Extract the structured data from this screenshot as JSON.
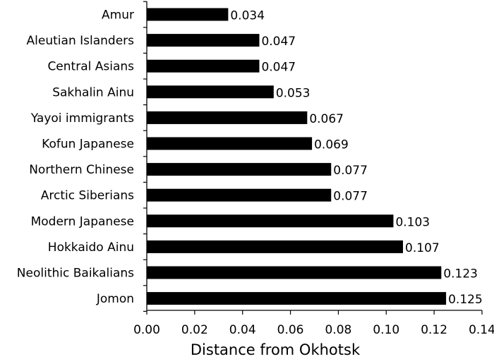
{
  "chart_data": {
    "type": "bar",
    "orientation": "horizontal",
    "categories": [
      "Amur",
      "Aleutian Islanders",
      "Central Asians",
      "Sakhalin Ainu",
      "Yayoi immigrants",
      "Kofun Japanese",
      "Northern Chinese",
      "Arctic Siberians",
      "Modern Japanese",
      "Hokkaido Ainu",
      "Neolithic Baikalians",
      "Jomon"
    ],
    "values": [
      0.034,
      0.047,
      0.047,
      0.053,
      0.067,
      0.069,
      0.077,
      0.077,
      0.103,
      0.107,
      0.123,
      0.125
    ],
    "value_labels": [
      "0.034",
      "0.047",
      "0.047",
      "0.053",
      "0.067",
      "0.069",
      "0.077",
      "0.077",
      "0.103",
      "0.107",
      "0.123",
      "0.125"
    ],
    "title": "",
    "xlabel": "Distance from Okhotsk",
    "ylabel": "",
    "xlim": [
      0,
      0.14
    ],
    "xticks": [
      0.0,
      0.02,
      0.04,
      0.06,
      0.08,
      0.1,
      0.12,
      0.14
    ],
    "xtick_labels": [
      "0.00",
      "0.02",
      "0.04",
      "0.06",
      "0.08",
      "0.10",
      "0.12",
      "0.14"
    ],
    "grid": false,
    "legend": "none",
    "bar_color": "#000000"
  }
}
